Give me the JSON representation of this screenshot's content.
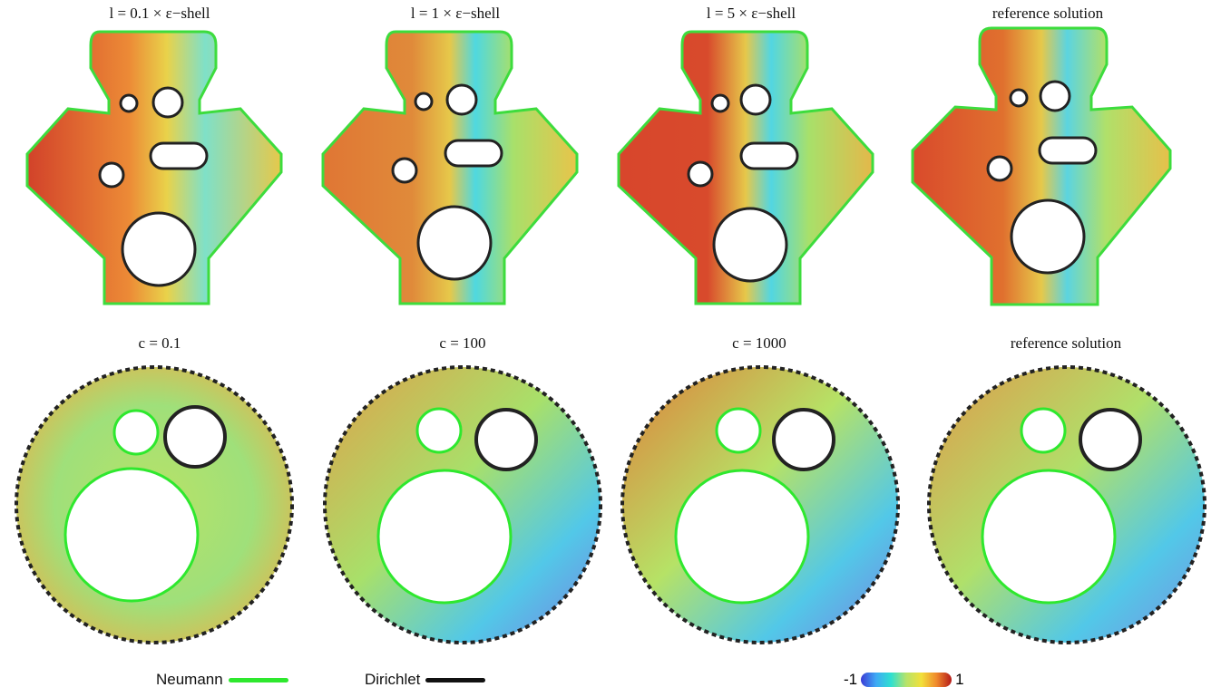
{
  "titles_top": [
    "l = 0.1 × ε−shell",
    "l = 1 × ε−shell",
    "l = 5 × ε−shell",
    "reference solution"
  ],
  "titles_bottom": [
    "c = 0.1",
    "c = 100",
    "c = 1000",
    "reference solution"
  ],
  "legend": {
    "neumann": "Neumann",
    "dirichlet": "Dirichlet",
    "neumann_color": "#2ee82e",
    "dirichlet_color": "#111111"
  },
  "colorbar": {
    "min": "-1",
    "max": "1"
  }
}
